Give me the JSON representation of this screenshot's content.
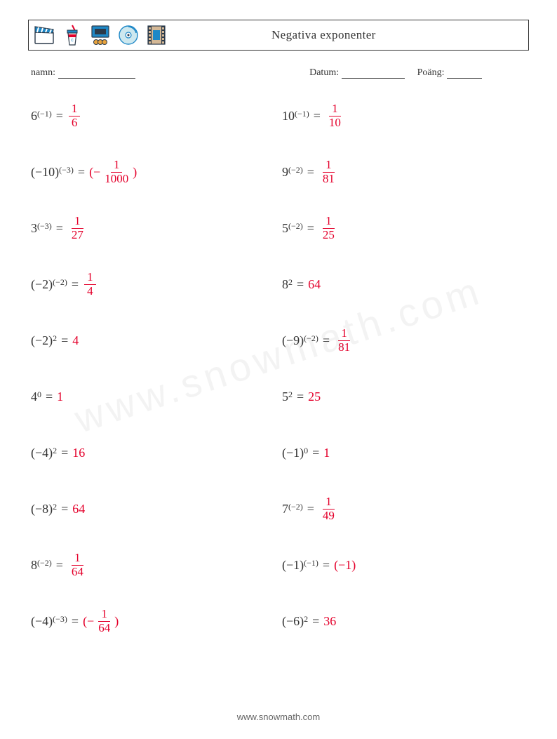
{
  "title": "Negativa exponenter",
  "meta": {
    "name_label": "namn:",
    "date_label": "Datum:",
    "score_label": "Poäng:",
    "name_blank_width": 110,
    "date_blank_width": 90,
    "score_blank_width": 50
  },
  "colors": {
    "text": "#333333",
    "answer": "#e4002b",
    "border": "#333333",
    "background": "#ffffff",
    "icon_blue": "#1e88c7",
    "icon_orange": "#e8a33d",
    "icon_teal": "#3aa8a8",
    "icon_dark": "#2b3a4a"
  },
  "icons": [
    "clapperboard",
    "drink-cup",
    "tickets-screen",
    "disc",
    "film-frame"
  ],
  "problems_left": [
    {
      "base": "6",
      "base_paren": false,
      "exp": "(−1)",
      "ans_type": "frac",
      "num": "1",
      "den": "6",
      "neg": false
    },
    {
      "base": "(−10)",
      "base_paren": true,
      "exp": "(−3)",
      "ans_type": "negfrac",
      "num": "1",
      "den": "1000",
      "neg": true
    },
    {
      "base": "3",
      "base_paren": false,
      "exp": "(−3)",
      "ans_type": "frac",
      "num": "1",
      "den": "27",
      "neg": false
    },
    {
      "base": "(−2)",
      "base_paren": true,
      "exp": "(−2)",
      "ans_type": "frac",
      "num": "1",
      "den": "4",
      "neg": false
    },
    {
      "base": "(−2)",
      "base_paren": true,
      "exp": "2",
      "ans_type": "int",
      "val": "4"
    },
    {
      "base": "4",
      "base_paren": false,
      "exp": "0",
      "ans_type": "int",
      "val": "1"
    },
    {
      "base": "(−4)",
      "base_paren": true,
      "exp": "2",
      "ans_type": "int",
      "val": "16"
    },
    {
      "base": "(−8)",
      "base_paren": true,
      "exp": "2",
      "ans_type": "int",
      "val": "64"
    },
    {
      "base": "8",
      "base_paren": false,
      "exp": "(−2)",
      "ans_type": "frac",
      "num": "1",
      "den": "64",
      "neg": false
    },
    {
      "base": "(−4)",
      "base_paren": true,
      "exp": "(−3)",
      "ans_type": "negfrac",
      "num": "1",
      "den": "64",
      "neg": true
    }
  ],
  "problems_right": [
    {
      "base": "10",
      "base_paren": false,
      "exp": "(−1)",
      "ans_type": "frac",
      "num": "1",
      "den": "10",
      "neg": false
    },
    {
      "base": "9",
      "base_paren": false,
      "exp": "(−2)",
      "ans_type": "frac",
      "num": "1",
      "den": "81",
      "neg": false
    },
    {
      "base": "5",
      "base_paren": false,
      "exp": "(−2)",
      "ans_type": "frac",
      "num": "1",
      "den": "25",
      "neg": false
    },
    {
      "base": "8",
      "base_paren": false,
      "exp": "2",
      "ans_type": "int",
      "val": "64"
    },
    {
      "base": "(−9)",
      "base_paren": true,
      "exp": "(−2)",
      "ans_type": "frac",
      "num": "1",
      "den": "81",
      "neg": false
    },
    {
      "base": "5",
      "base_paren": false,
      "exp": "2",
      "ans_type": "int",
      "val": "25"
    },
    {
      "base": "(−1)",
      "base_paren": true,
      "exp": "0",
      "ans_type": "int",
      "val": "1"
    },
    {
      "base": "7",
      "base_paren": false,
      "exp": "(−2)",
      "ans_type": "frac",
      "num": "1",
      "den": "49",
      "neg": false
    },
    {
      "base": "(−1)",
      "base_paren": true,
      "exp": "(−1)",
      "ans_type": "paren",
      "val": "(−1)"
    },
    {
      "base": "(−6)",
      "base_paren": true,
      "exp": "2",
      "ans_type": "int",
      "val": "36"
    }
  ],
  "footer": "www.snowmath.com",
  "watermark": "www.snowmath.com"
}
